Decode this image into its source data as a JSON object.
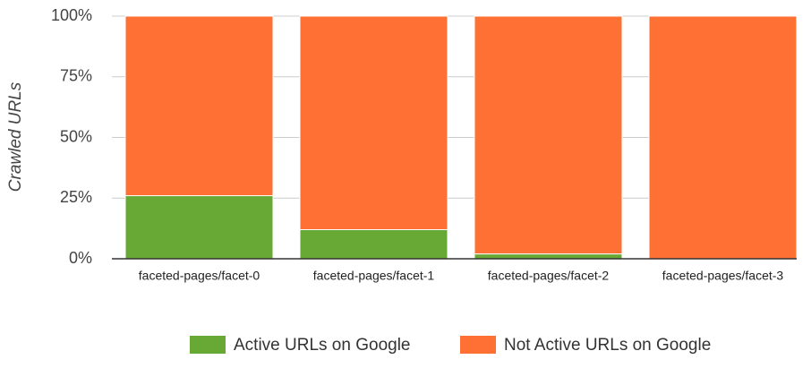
{
  "chart_data": {
    "type": "stacked_bar",
    "y_label": "Crawled URLs",
    "categories": [
      "faceted-pages/facet-0",
      "faceted-pages/facet-1",
      "faceted-pages/facet-2",
      "faceted-pages/facet-3"
    ],
    "series": [
      {
        "name": "Active URLs on Google",
        "color": "#68a935",
        "values": [
          26,
          12,
          2,
          0
        ]
      },
      {
        "name": "Not Active URLs on Google",
        "color": "#fe7034",
        "values": [
          74,
          88,
          98,
          100
        ]
      }
    ],
    "ylim": [
      0,
      100
    ],
    "yticks": [
      {
        "value": 0,
        "label": "0%"
      },
      {
        "value": 25,
        "label": "25%"
      },
      {
        "value": 50,
        "label": "50%"
      },
      {
        "value": 75,
        "label": "75%"
      },
      {
        "value": 100,
        "label": "100%"
      }
    ],
    "grid": true,
    "legend": "bottom"
  }
}
